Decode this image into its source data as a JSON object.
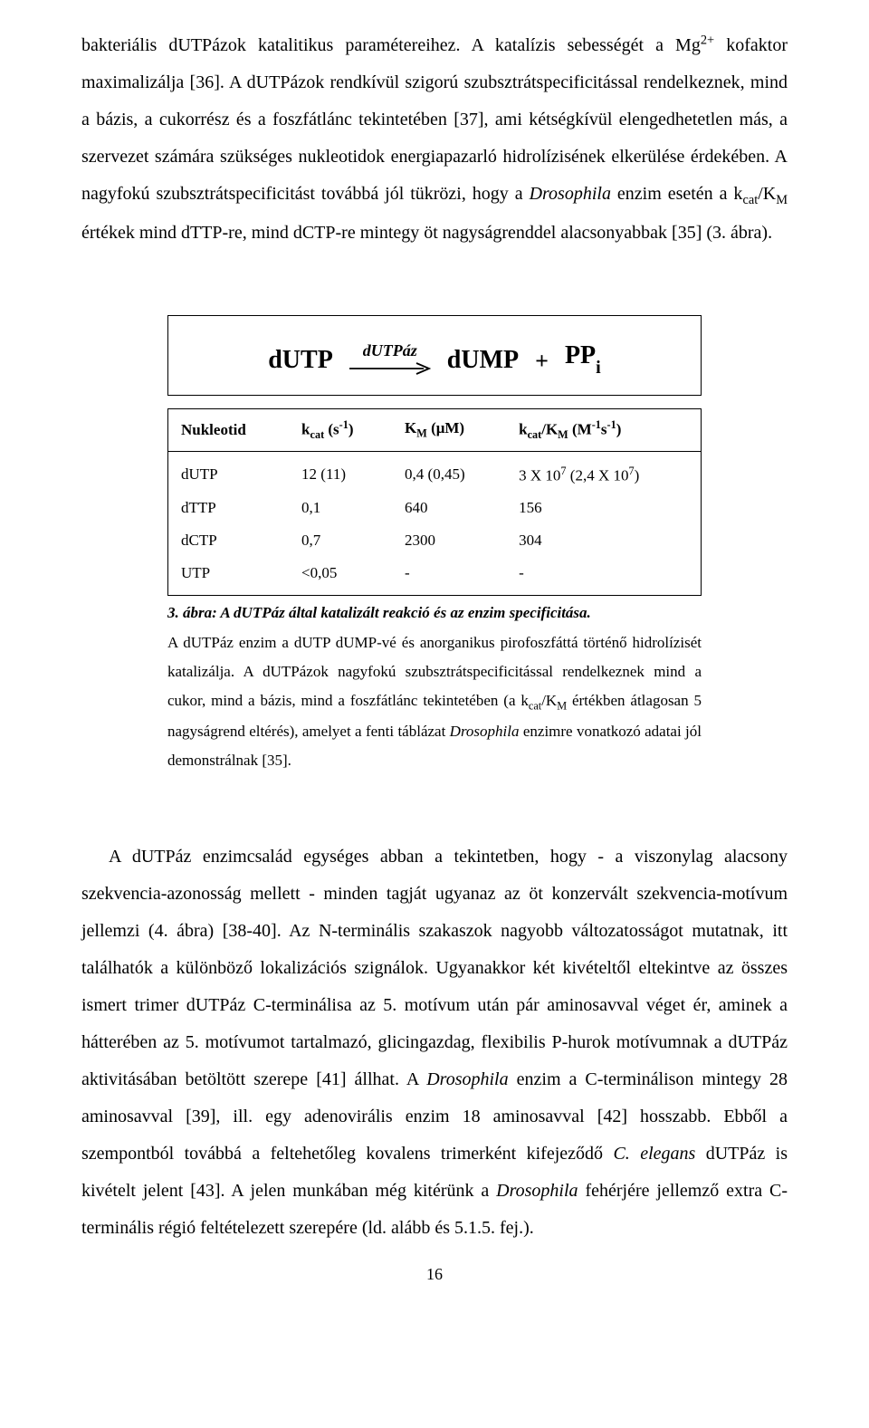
{
  "para1_html": "bakteriális dUTPázok katalitikus paramétereihez. A katalízis sebességét a Mg<sup>2+</sup> kofaktor maximalizálja [36]. A dUTPázok rendkívül szigorú szubsztrátspecificitással rendelkeznek, mind a bázis, a cukorrész és a foszfátlánc tekintetében [37], ami kétségkívül elengedhetetlen más, a szervezet számára szükséges nukleotidok energiapazarló hidrolízisének elkerülése érdekében. A nagyfokú szubsztrátspecificitást továbbá jól tükrözi, hogy a <span class=\"italic\">Drosophila</span> enzim esetén a k<sub>cat</sub>/K<sub>M</sub> értékek mind dTTP-re, mind dCTP-re mintegy öt nagyságrenddel alacsonyabbak [35] (3. ábra).",
  "reaction": {
    "left": "dUTP",
    "enzyme": "dUTPáz",
    "right1": "dUMP",
    "plus": "+",
    "right2_html": "PP<span class=\"sub\">i</span>",
    "arrow": {
      "stroke": "#000000",
      "stroke_width": 1.8
    }
  },
  "table": {
    "headers_html": [
      "Nukleotid",
      "k<sub>cat</sub> (s<sup>-1</sup>)",
      "K<sub>M</sub> (μM)",
      "k<sub>cat</sub>/K<sub>M</sub> (M<sup>-1</sup>s<sup>-1</sup>)"
    ],
    "rows": [
      [
        "dUTP",
        "12 (11)",
        "0,4 (0,45)",
        "3 X 10<sup>7</sup> (2,4 X 10<sup>7</sup>)"
      ],
      [
        "dTTP",
        "0,1",
        "640",
        "156"
      ],
      [
        "dCTP",
        "0,7",
        "2300",
        "304"
      ],
      [
        "UTP",
        "&lt;0,05",
        "-",
        "-"
      ]
    ]
  },
  "caption": {
    "title": "3. ábra: A dUTPáz által katalizált reakció és az enzim specificitása.",
    "body_html": "A dUTPáz enzim a dUTP dUMP-vé és anorganikus pirofoszfáttá történő hidrolízisét katalizálja. A dUTPázok nagyfokú szubsztrátspecificitással rendelkeznek mind a cukor, mind a bázis, mind a foszfátlánc tekintetében (a k<sub>cat</sub>/K<sub>M</sub> értékben átlagosan 5 nagyságrend eltérés), amelyet a fenti táblázat <span class=\"italic\">Drosophila</span> enzimre vonatkozó adatai jól demonstrálnak [35]."
  },
  "para2_html": "A dUTPáz enzimcsalád egységes abban a tekintetben, hogy - a viszonylag alacsony szekvencia-azonosság mellett - minden tagját ugyanaz az öt konzervált szekvencia-motívum jellemzi (4. ábra) [38-40]. Az N-terminális szakaszok nagyobb változatosságot mutatnak, itt találhatók a különböző lokalizációs szignálok. Ugyanakkor két kivételtől eltekintve az összes ismert trimer dUTPáz C-terminálisa az 5. motívum után pár aminosavval véget ér, aminek a hátterében az 5. motívumot tartalmazó, glicingazdag, flexibilis P-hurok motívumnak a dUTPáz aktivitásában betöltött szerepe [41] állhat.  A <span class=\"italic\">Drosophila</span> enzim a C-terminálison mintegy 28 aminosavval [39], ill. egy adenovirális enzim 18 aminosavval [42] hosszabb. Ebből a szempontból továbbá a feltehetőleg kovalens trimerként kifejeződő <span class=\"italic\">C. elegans</span> dUTPáz is kivételt jelent [43]. A jelen munkában még kitérünk a <span class=\"italic\">Drosophila</span> fehérjére jellemző extra C-terminális régió feltételezett szerepére (ld. alább és 5.1.5. fej.).",
  "pagenum": "16"
}
